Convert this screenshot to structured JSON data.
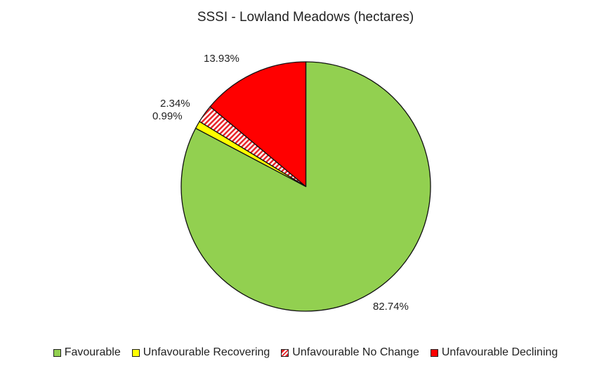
{
  "chart_data": {
    "type": "pie",
    "title": "SSSI - Lowland Meadows (hectares)",
    "categories": [
      "Favourable",
      "Unfavourable Recovering",
      "Unfavourable No Change",
      "Unfavourable Declining"
    ],
    "values": [
      82.74,
      0.99,
      2.34,
      13.93
    ],
    "unit": "%",
    "data_labels": [
      "82.74%",
      "0.99%",
      "2.34%",
      "13.93%"
    ],
    "colors": [
      "#92d050",
      "#ffff00",
      "hatch-red-white",
      "#ff0000"
    ],
    "start_angle": "12 o'clock",
    "direction": "clockwise",
    "legend_position": "bottom"
  },
  "legend": {
    "items": [
      {
        "label": "Favourable",
        "color": "#92d050"
      },
      {
        "label": "Unfavourable Recovering",
        "color": "#ffff00"
      },
      {
        "label": "Unfavourable No Change",
        "color": "hatch-red-white"
      },
      {
        "label": "Unfavourable Declining",
        "color": "#ff0000"
      }
    ]
  }
}
